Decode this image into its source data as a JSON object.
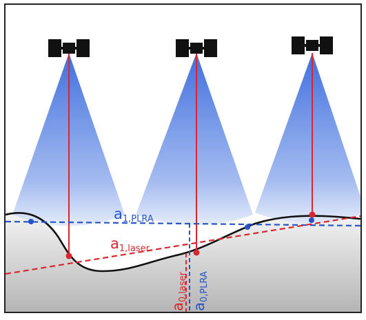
{
  "labels": {
    "a1_plra": {
      "main": "a",
      "sub": "1,PLRA"
    },
    "a1_laser": {
      "main": "a",
      "sub": "1,laser"
    },
    "a0_laser": {
      "main": "a",
      "sub": "0,laser"
    },
    "a0_plra": {
      "main": "a",
      "sub": "0,PLRA"
    }
  },
  "colors": {
    "plra": "#2554c7",
    "laser": "#d9262c",
    "terrain_line": "#111111",
    "beam_top": "#3f6ede",
    "beam_bottom": "#d4e0f7",
    "ground_top": "#f3f3f3",
    "ground_bottom": "#b9b9b9",
    "satellite": "#111111"
  },
  "satellites": [
    "satellite-left",
    "satellite-middle",
    "satellite-right"
  ]
}
